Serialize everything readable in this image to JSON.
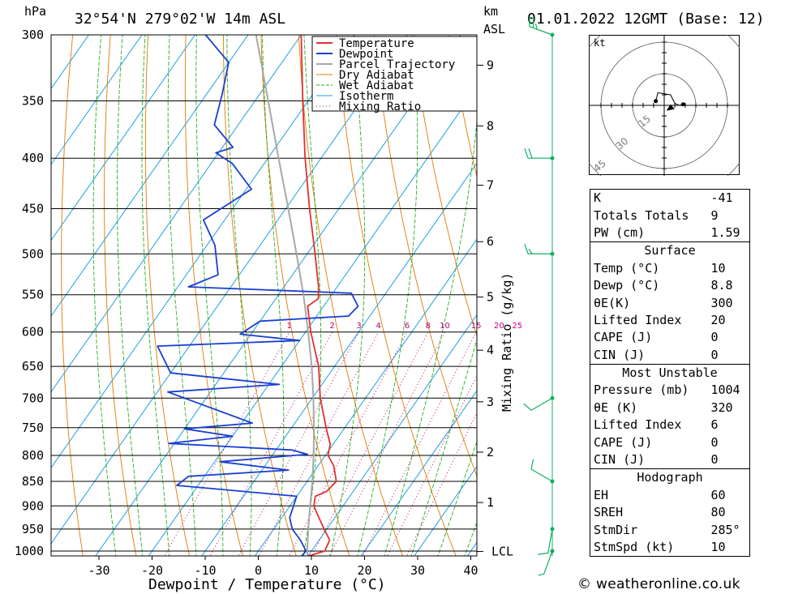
{
  "header": {
    "hpa_label": "hPa",
    "location": "32°54'N  279°02'W  14m  ASL",
    "km_label": "km",
    "asl_label": "ASL",
    "datetime": "01.01.2022  12GMT  (Base: 12)"
  },
  "legend": [
    "Temperature",
    "Dewpoint",
    "Parcel Trajectory",
    "Dry Adiabat",
    "Wet Adiabat",
    "Isotherm",
    "Mixing Ratio"
  ],
  "colors": {
    "temperature": "#e03030",
    "dewpoint": "#1a3fd0",
    "parcel": "#a8a8a8",
    "dry_adiabat": "#e07a00",
    "wet_adiabat": "#22b022",
    "isotherm": "#20a0e0",
    "mixing_ratio": "#c0007a",
    "wind": "#10b060"
  },
  "chart_data": {
    "type": "skew-t",
    "xlabel": "Dewpoint / Temperature (°C)",
    "ylabel_left": "hPa",
    "ylabel_right": "Mixing Ratio (g/kg)",
    "x_ticks": [
      -30,
      -20,
      -10,
      0,
      10,
      20,
      30,
      40
    ],
    "pressure_levels": [
      300,
      350,
      400,
      450,
      500,
      550,
      600,
      650,
      700,
      750,
      800,
      850,
      900,
      950,
      1000
    ],
    "km_ticks": [
      {
        "label": "9",
        "p": 322
      },
      {
        "label": "8",
        "p": 371
      },
      {
        "label": "7",
        "p": 426
      },
      {
        "label": "6",
        "p": 486
      },
      {
        "label": "5",
        "p": 553
      },
      {
        "label": "4",
        "p": 626
      },
      {
        "label": "3",
        "p": 706
      },
      {
        "label": "2",
        "p": 794
      },
      {
        "label": "1",
        "p": 893
      },
      {
        "label": "LCL",
        "p": 1001
      }
    ],
    "mixing_ratio_labels": [
      "1",
      "2",
      "3",
      "4",
      "6",
      "8",
      "10",
      "15",
      "20",
      "25"
    ],
    "mixing_ratio_values": [
      1,
      2,
      3,
      4,
      6,
      8,
      10,
      15,
      20,
      25
    ],
    "temperature": [
      {
        "p": 1012,
        "t": 10.0
      },
      {
        "p": 1000,
        "t": 12.5
      },
      {
        "p": 975,
        "t": 12.0
      },
      {
        "p": 950,
        "t": 9.5
      },
      {
        "p": 925,
        "t": 7.0
      },
      {
        "p": 900,
        "t": 4.5
      },
      {
        "p": 880,
        "t": 3.5
      },
      {
        "p": 870,
        "t": 5.0
      },
      {
        "p": 850,
        "t": 5.5
      },
      {
        "p": 820,
        "t": 3.0
      },
      {
        "p": 800,
        "t": 0.5
      },
      {
        "p": 780,
        "t": -0.5
      },
      {
        "p": 750,
        "t": -3.5
      },
      {
        "p": 700,
        "t": -8.5
      },
      {
        "p": 650,
        "t": -13.0
      },
      {
        "p": 600,
        "t": -19.0
      },
      {
        "p": 565,
        "t": -23.0
      },
      {
        "p": 555,
        "t": -22.0
      },
      {
        "p": 540,
        "t": -23.5
      },
      {
        "p": 500,
        "t": -28.5
      },
      {
        "p": 450,
        "t": -35.5
      },
      {
        "p": 400,
        "t": -43.0
      },
      {
        "p": 350,
        "t": -51.0
      },
      {
        "p": 300,
        "t": -60.0
      }
    ],
    "dewpoint": [
      {
        "p": 1012,
        "t": 8.8
      },
      {
        "p": 1000,
        "t": 9.0
      },
      {
        "p": 975,
        "t": 6.5
      },
      {
        "p": 950,
        "t": 3.5
      },
      {
        "p": 925,
        "t": 1.5
      },
      {
        "p": 880,
        "t": 0.0
      },
      {
        "p": 858,
        "t": -24.0
      },
      {
        "p": 840,
        "t": -23.0
      },
      {
        "p": 828,
        "t": -5.0
      },
      {
        "p": 812,
        "t": -19.0
      },
      {
        "p": 798,
        "t": -3.5
      },
      {
        "p": 790,
        "t": -7.0
      },
      {
        "p": 778,
        "t": -31.0
      },
      {
        "p": 765,
        "t": -20.0
      },
      {
        "p": 752,
        "t": -30.0
      },
      {
        "p": 742,
        "t": -18.0
      },
      {
        "p": 690,
        "t": -38.0
      },
      {
        "p": 678,
        "t": -18.0
      },
      {
        "p": 660,
        "t": -40.0
      },
      {
        "p": 620,
        "t": -46.0
      },
      {
        "p": 612,
        "t": -20.0
      },
      {
        "p": 603,
        "t": -32.0
      },
      {
        "p": 585,
        "t": -30.0
      },
      {
        "p": 578,
        "t": -14.0
      },
      {
        "p": 565,
        "t": -13.5
      },
      {
        "p": 548,
        "t": -16.5
      },
      {
        "p": 540,
        "t": -48.0
      },
      {
        "p": 525,
        "t": -44.0
      },
      {
        "p": 490,
        "t": -48.5
      },
      {
        "p": 462,
        "t": -54.0
      },
      {
        "p": 430,
        "t": -49.0
      },
      {
        "p": 405,
        "t": -56.0
      },
      {
        "p": 395,
        "t": -60.5
      },
      {
        "p": 390,
        "t": -58.0
      },
      {
        "p": 370,
        "t": -64.5
      },
      {
        "p": 345,
        "t": -67.0
      },
      {
        "p": 320,
        "t": -70.0
      },
      {
        "p": 300,
        "t": -78.0
      }
    ],
    "parcel": [
      {
        "p": 1012,
        "t": 10.0
      },
      {
        "p": 1000,
        "t": 9.2
      },
      {
        "p": 950,
        "t": 6.5
      },
      {
        "p": 900,
        "t": 3.8
      },
      {
        "p": 850,
        "t": 1.0
      },
      {
        "p": 800,
        "t": -2.2
      },
      {
        "p": 750,
        "t": -5.8
      },
      {
        "p": 700,
        "t": -9.8
      },
      {
        "p": 650,
        "t": -14.3
      },
      {
        "p": 600,
        "t": -19.5
      },
      {
        "p": 550,
        "t": -25.3
      },
      {
        "p": 500,
        "t": -32.0
      },
      {
        "p": 450,
        "t": -39.5
      },
      {
        "p": 400,
        "t": -48.0
      },
      {
        "p": 350,
        "t": -57.5
      },
      {
        "p": 300,
        "t": -68.5
      }
    ],
    "wind_barbs": [
      {
        "p": 300,
        "dir": 290,
        "kt": 25
      },
      {
        "p": 400,
        "dir": 270,
        "kt": 20
      },
      {
        "p": 500,
        "dir": 270,
        "kt": 15
      },
      {
        "p": 700,
        "dir": 240,
        "kt": 10
      },
      {
        "p": 850,
        "dir": 300,
        "kt": 10
      },
      {
        "p": 950,
        "dir": 190,
        "kt": 10
      },
      {
        "p": 1000,
        "dir": 200,
        "kt": 5
      }
    ]
  },
  "hodograph": {
    "unit_label": "kt",
    "ring_labels": [
      "15",
      "30",
      "45"
    ],
    "points": [
      {
        "u": -4,
        "v": 2
      },
      {
        "u": -3,
        "v": 6
      },
      {
        "u": 3,
        "v": 5
      },
      {
        "u": 5,
        "v": 1
      },
      {
        "u": 7,
        "v": 0
      },
      {
        "u": 9,
        "v": 0.5
      }
    ],
    "storm": {
      "u": 3,
      "v": -1
    }
  },
  "indices": {
    "k_label": "K",
    "k_value": "-41",
    "tt_label": "Totals Totals",
    "tt_value": "9",
    "pw_label": "PW (cm)",
    "pw_value": "1.59",
    "surface_title": "Surface",
    "s_temp_label": "Temp (°C)",
    "s_temp_value": "10",
    "s_dewp_label": "Dewp (°C)",
    "s_dewp_value": "8.8",
    "s_theta_label": "θE(K)",
    "s_theta_value": "300",
    "s_li_label": "Lifted Index",
    "s_li_value": "20",
    "s_cape_label": "CAPE (J)",
    "s_cape_value": "0",
    "s_cin_label": "CIN (J)",
    "s_cin_value": "0",
    "mu_title": "Most Unstable",
    "mu_p_label": "Pressure (mb)",
    "mu_p_value": "1004",
    "mu_theta_label": "θE (K)",
    "mu_theta_value": "320",
    "mu_li_label": "Lifted Index",
    "mu_li_value": "6",
    "mu_cape_label": "CAPE (J)",
    "mu_cape_value": "0",
    "mu_cin_label": "CIN (J)",
    "mu_cin_value": "0",
    "hodo_title": "Hodograph",
    "eh_label": "EH",
    "eh_value": "60",
    "sreh_label": "SREH",
    "sreh_value": "80",
    "stmdir_label": "StmDir",
    "stmdir_value": "285°",
    "stmspd_label": "StmSpd (kt)",
    "stmspd_value": "10"
  },
  "footer": {
    "copyright": "© weatheronline.co.uk"
  }
}
